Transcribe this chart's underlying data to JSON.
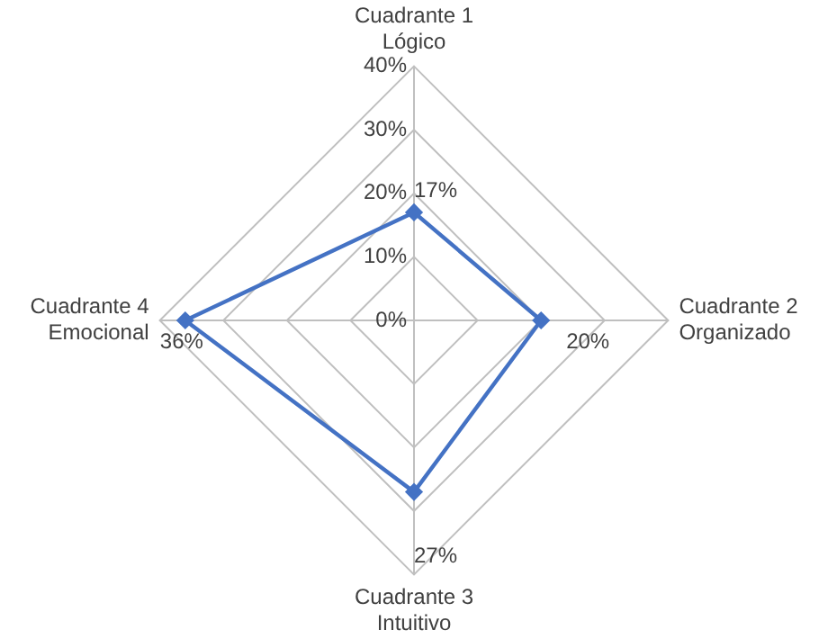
{
  "chart_data": {
    "type": "radar",
    "categories": [
      "Cuadrante 1\nLógico",
      "Cuadrante 2\nOrganizado",
      "Cuadrante 3\nIntuitivo",
      "Cuadrante 4\nEmocional"
    ],
    "series": [
      {
        "color": "#4472c4",
        "values": [
          17,
          20,
          27,
          36
        ],
        "value_labels": [
          "17%",
          "20%",
          "27%",
          "36%"
        ]
      }
    ],
    "ylim": [
      0,
      40
    ],
    "yticks": [
      {
        "value": 0,
        "label": "0%"
      },
      {
        "value": 10,
        "label": "10%"
      },
      {
        "value": 20,
        "label": "20%"
      },
      {
        "value": 30,
        "label": "30%"
      },
      {
        "value": 40,
        "label": "40%"
      }
    ],
    "grid": true,
    "marker": "diamond",
    "legend": false
  }
}
